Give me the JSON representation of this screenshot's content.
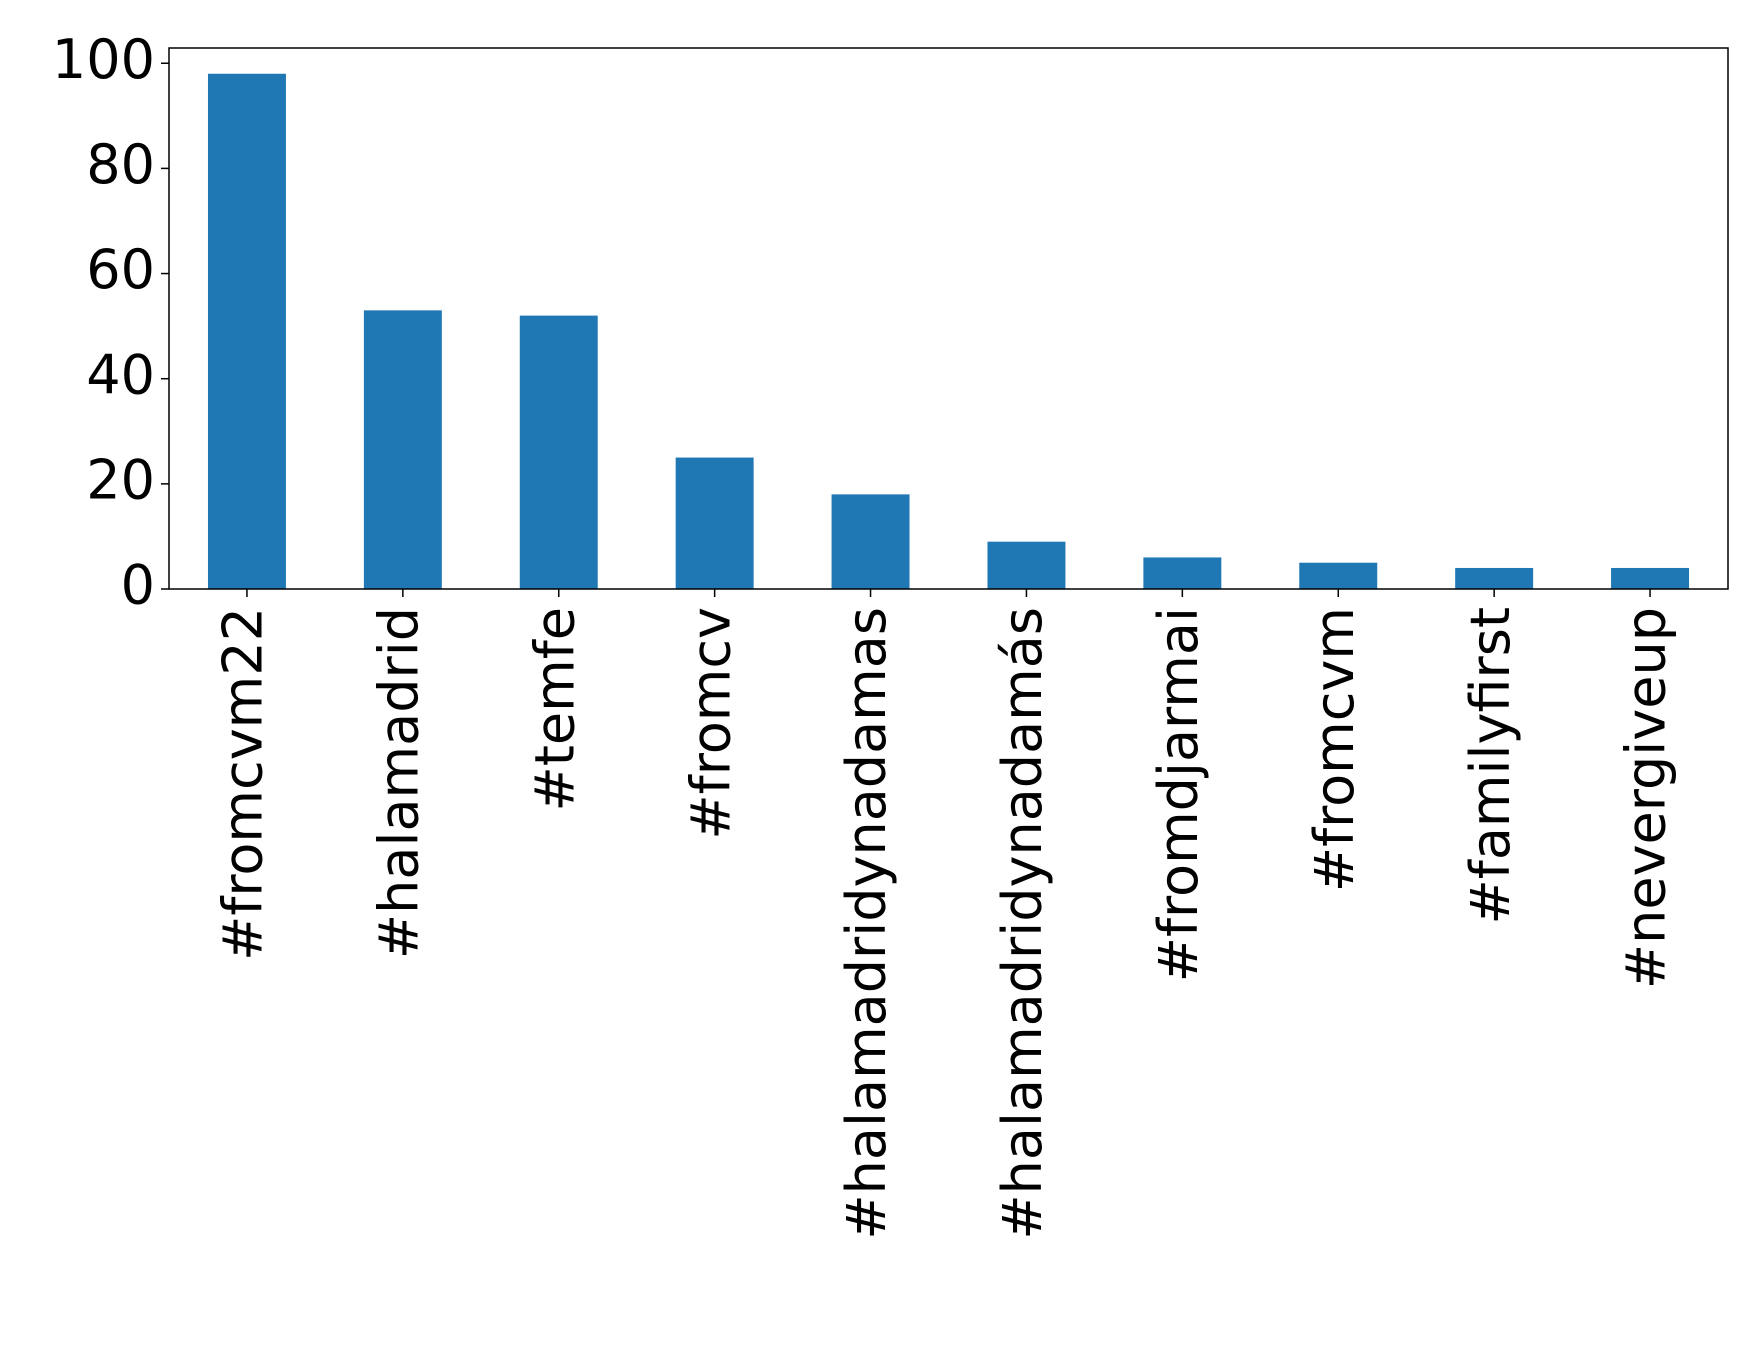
{
  "chart_data": {
    "type": "bar",
    "categories": [
      "#fromcvm22",
      "#halamadrid",
      "#temfe",
      "#fromcv",
      "#halamadridynadamas",
      "#halamadridynadamás",
      "#fromdjarmai",
      "#fromcvm",
      "#familyfirst",
      "#nevergiveup"
    ],
    "values": [
      98,
      53,
      52,
      25,
      18,
      9,
      6,
      5,
      4,
      4
    ],
    "color": "#1f77b4",
    "ylim": [
      0,
      102.9
    ],
    "yticks": [
      0,
      20,
      40,
      60,
      80,
      100
    ],
    "grid": false
  }
}
